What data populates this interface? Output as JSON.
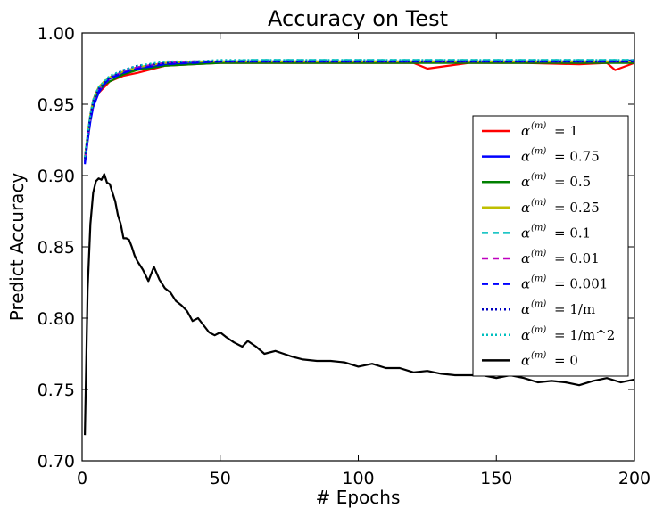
{
  "chart_data": {
    "type": "line",
    "title": "Accuracy on Test",
    "xlabel": "# Epochs",
    "ylabel": "Predict Accuracy",
    "xlim": [
      0,
      200
    ],
    "ylim": [
      0.7,
      1.0
    ],
    "x_ticks": [
      "0",
      "50",
      "100",
      "150",
      "200"
    ],
    "y_ticks": [
      "0.70",
      "0.75",
      "0.80",
      "0.85",
      "0.90",
      "0.95",
      "1.00"
    ],
    "grid": false,
    "legend_position": "center-right",
    "legend_symbol": "α",
    "series": [
      {
        "name": "1",
        "color": "#ff0000",
        "dash": "solid",
        "x": [
          1,
          2,
          3,
          4,
          5,
          6,
          8,
          10,
          15,
          20,
          30,
          40,
          50,
          60,
          80,
          100,
          120,
          125,
          140,
          160,
          180,
          190,
          193,
          200
        ],
        "y": [
          0.91,
          0.925,
          0.94,
          0.95,
          0.955,
          0.958,
          0.962,
          0.966,
          0.97,
          0.972,
          0.977,
          0.978,
          0.979,
          0.979,
          0.979,
          0.979,
          0.979,
          0.975,
          0.979,
          0.979,
          0.978,
          0.979,
          0.974,
          0.979
        ]
      },
      {
        "name": "0.75",
        "color": "#0000ff",
        "dash": "solid",
        "x": [
          1,
          2,
          3,
          4,
          5,
          6,
          8,
          10,
          15,
          20,
          30,
          40,
          50,
          60,
          80,
          100,
          120,
          140,
          160,
          180,
          195,
          200
        ],
        "y": [
          0.908,
          0.924,
          0.938,
          0.948,
          0.953,
          0.958,
          0.964,
          0.968,
          0.972,
          0.975,
          0.978,
          0.979,
          0.98,
          0.98,
          0.98,
          0.98,
          0.98,
          0.98,
          0.98,
          0.98,
          0.98,
          0.981
        ]
      },
      {
        "name": "0.5",
        "color": "#008000",
        "dash": "solid",
        "x": [
          1,
          2,
          3,
          4,
          5,
          6,
          8,
          10,
          15,
          20,
          30,
          40,
          50,
          60,
          80,
          100,
          120,
          140,
          160,
          180,
          200
        ],
        "y": [
          0.912,
          0.927,
          0.941,
          0.951,
          0.956,
          0.96,
          0.964,
          0.966,
          0.971,
          0.974,
          0.977,
          0.978,
          0.979,
          0.979,
          0.979,
          0.979,
          0.979,
          0.979,
          0.979,
          0.979,
          0.979
        ]
      },
      {
        "name": "0.25",
        "color": "#bfbf00",
        "dash": "solid",
        "x": [
          1,
          2,
          3,
          4,
          5,
          6,
          8,
          10,
          15,
          20,
          30,
          40,
          50,
          60,
          80,
          100,
          120,
          140,
          160,
          180,
          200
        ],
        "y": [
          0.913,
          0.929,
          0.943,
          0.953,
          0.958,
          0.962,
          0.966,
          0.969,
          0.973,
          0.976,
          0.979,
          0.98,
          0.98,
          0.98,
          0.98,
          0.98,
          0.98,
          0.98,
          0.98,
          0.98,
          0.98
        ]
      },
      {
        "name": "0.1",
        "color": "#00bfbf",
        "dash": "dashed",
        "x": [
          1,
          2,
          3,
          4,
          5,
          6,
          8,
          10,
          15,
          20,
          30,
          40,
          50,
          60,
          80,
          100,
          120,
          140,
          160,
          180,
          200
        ],
        "y": [
          0.911,
          0.928,
          0.942,
          0.952,
          0.957,
          0.961,
          0.965,
          0.969,
          0.973,
          0.976,
          0.979,
          0.98,
          0.98,
          0.981,
          0.981,
          0.981,
          0.981,
          0.981,
          0.981,
          0.981,
          0.981
        ]
      },
      {
        "name": "0.01",
        "color": "#bf00bf",
        "dash": "dashed",
        "x": [
          1,
          2,
          3,
          4,
          5,
          6,
          8,
          10,
          15,
          20,
          30,
          40,
          50,
          60,
          80,
          100,
          120,
          140,
          160,
          180,
          200
        ],
        "y": [
          0.91,
          0.926,
          0.94,
          0.95,
          0.956,
          0.96,
          0.964,
          0.968,
          0.973,
          0.976,
          0.979,
          0.98,
          0.98,
          0.98,
          0.98,
          0.98,
          0.98,
          0.98,
          0.98,
          0.98,
          0.98
        ]
      },
      {
        "name": "0.001",
        "color": "#0000ff",
        "dash": "dashed",
        "x": [
          1,
          2,
          3,
          4,
          5,
          6,
          8,
          10,
          15,
          20,
          30,
          40,
          50,
          60,
          80,
          100,
          120,
          140,
          160,
          180,
          200
        ],
        "y": [
          0.909,
          0.925,
          0.939,
          0.949,
          0.955,
          0.959,
          0.964,
          0.968,
          0.972,
          0.975,
          0.978,
          0.979,
          0.98,
          0.98,
          0.98,
          0.98,
          0.98,
          0.98,
          0.98,
          0.98,
          0.98
        ]
      },
      {
        "name": "1/m",
        "color": "#0000bf",
        "dash": "dotted",
        "x": [
          1,
          2,
          3,
          4,
          5,
          6,
          8,
          10,
          15,
          20,
          30,
          40,
          50,
          60,
          80,
          100,
          120,
          140,
          160,
          180,
          200
        ],
        "y": [
          0.912,
          0.928,
          0.942,
          0.952,
          0.957,
          0.961,
          0.965,
          0.969,
          0.974,
          0.977,
          0.979,
          0.98,
          0.98,
          0.98,
          0.98,
          0.98,
          0.98,
          0.98,
          0.98,
          0.98,
          0.98
        ]
      },
      {
        "name": "1/m^2",
        "color": "#00bfbf",
        "dash": "dotted",
        "x": [
          1,
          2,
          3,
          4,
          5,
          6,
          8,
          10,
          15,
          20,
          30,
          40,
          50,
          60,
          80,
          100,
          120,
          140,
          160,
          180,
          200
        ],
        "y": [
          0.913,
          0.929,
          0.943,
          0.953,
          0.958,
          0.962,
          0.966,
          0.97,
          0.974,
          0.977,
          0.98,
          0.98,
          0.981,
          0.981,
          0.981,
          0.981,
          0.981,
          0.981,
          0.981,
          0.981,
          0.981
        ]
      },
      {
        "name": "0",
        "color": "#000000",
        "dash": "solid",
        "x": [
          1,
          2,
          3,
          4,
          5,
          6,
          7,
          8,
          9,
          10,
          11,
          12,
          13,
          14,
          15,
          16,
          17,
          18,
          19,
          20,
          22,
          24,
          26,
          28,
          30,
          32,
          34,
          36,
          38,
          40,
          42,
          44,
          46,
          48,
          50,
          52,
          55,
          58,
          60,
          63,
          66,
          70,
          73,
          76,
          80,
          85,
          90,
          95,
          100,
          105,
          110,
          115,
          120,
          125,
          130,
          135,
          140,
          145,
          150,
          155,
          160,
          165,
          170,
          175,
          180,
          185,
          190,
          195,
          200
        ],
        "y": [
          0.718,
          0.82,
          0.866,
          0.888,
          0.896,
          0.898,
          0.897,
          0.901,
          0.895,
          0.894,
          0.888,
          0.882,
          0.872,
          0.866,
          0.856,
          0.856,
          0.855,
          0.85,
          0.844,
          0.84,
          0.834,
          0.826,
          0.836,
          0.827,
          0.821,
          0.818,
          0.812,
          0.809,
          0.805,
          0.798,
          0.8,
          0.795,
          0.79,
          0.788,
          0.79,
          0.787,
          0.783,
          0.78,
          0.784,
          0.78,
          0.775,
          0.777,
          0.775,
          0.773,
          0.771,
          0.77,
          0.77,
          0.769,
          0.766,
          0.768,
          0.765,
          0.765,
          0.762,
          0.763,
          0.761,
          0.76,
          0.76,
          0.76,
          0.758,
          0.76,
          0.758,
          0.755,
          0.756,
          0.755,
          0.753,
          0.756,
          0.758,
          0.755,
          0.757
        ]
      }
    ]
  }
}
